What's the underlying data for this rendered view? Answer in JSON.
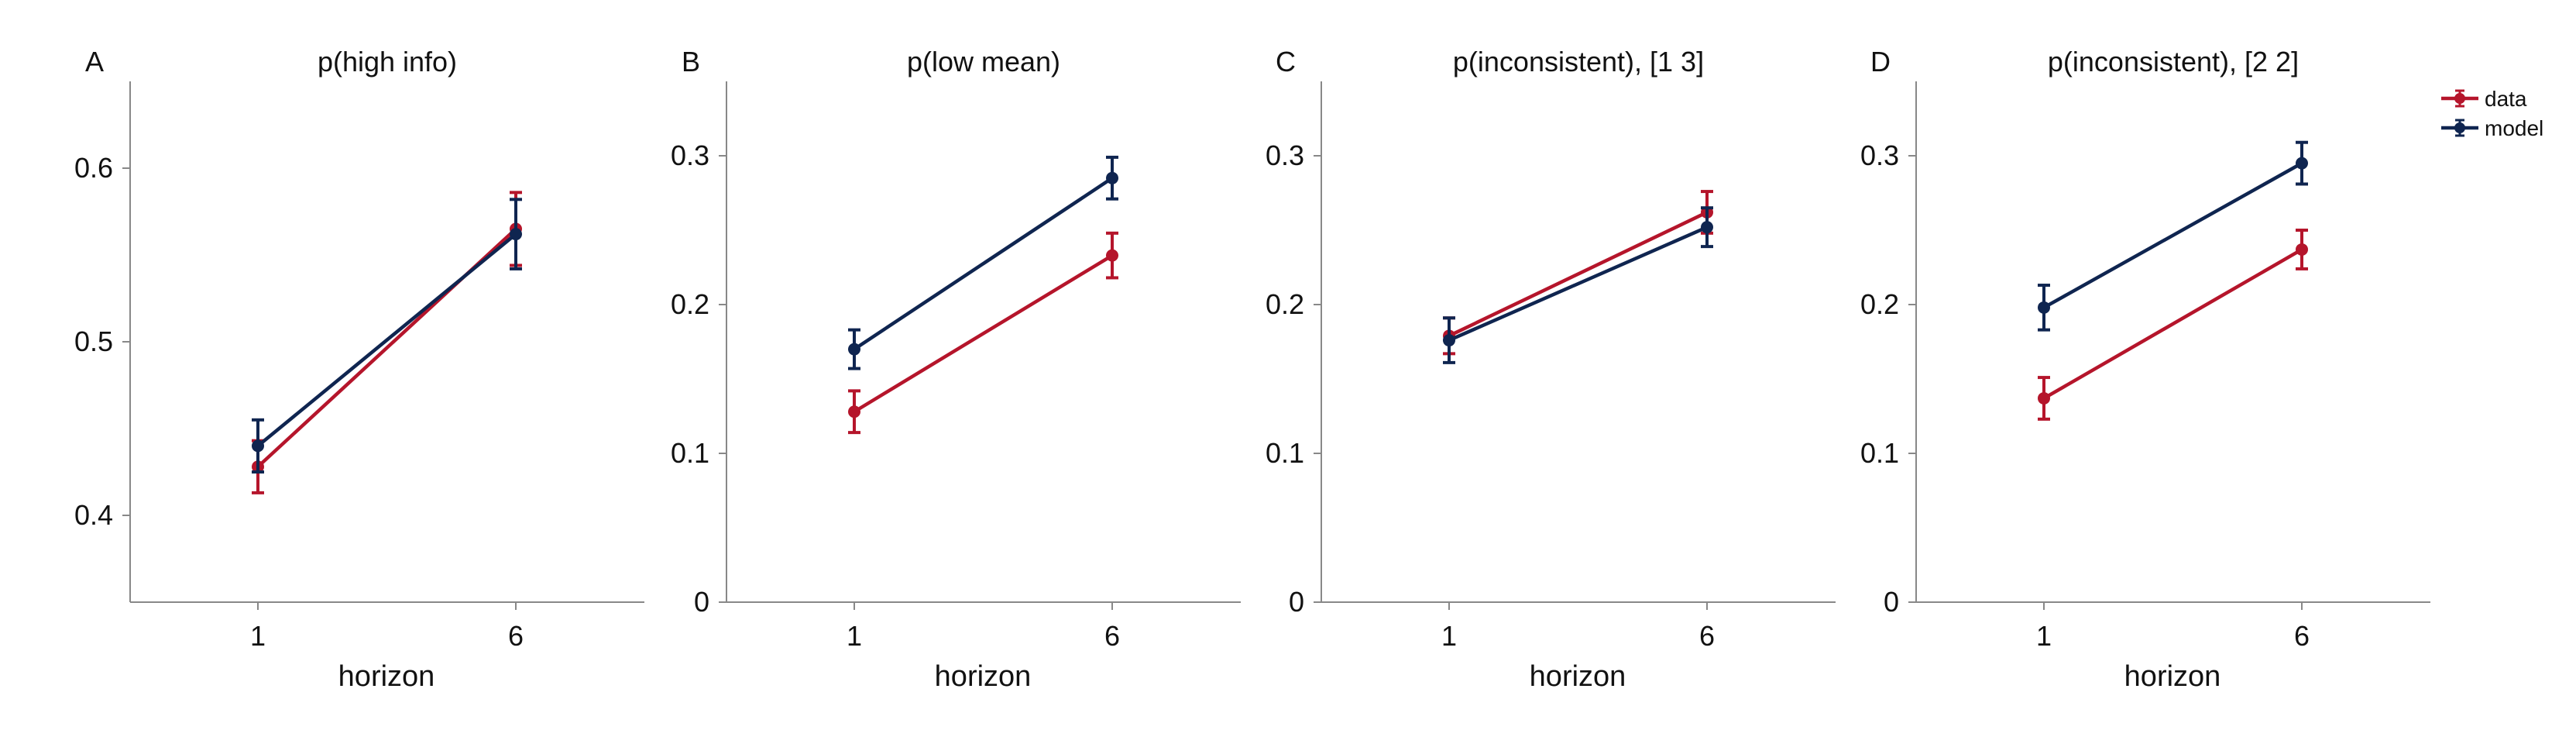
{
  "colors": {
    "data": "#b5152b",
    "model": "#0f2550",
    "axis": "#888888",
    "text": "#111111"
  },
  "legend": {
    "position": "top-right",
    "items": [
      {
        "key": "data",
        "label": "data"
      },
      {
        "key": "model",
        "label": "model"
      }
    ]
  },
  "chart_data": [
    {
      "type": "line",
      "panel": "A",
      "title": "p(high info)",
      "xlabel": "horizon",
      "ylabel": "",
      "x": [
        1,
        6
      ],
      "xticks": [
        "1",
        "6"
      ],
      "ylim": [
        0.35,
        0.65
      ],
      "yticks": [
        0.4,
        0.5,
        0.6
      ],
      "ytick_labels": [
        "0.4",
        "0.5",
        "0.6"
      ],
      "grid": false,
      "series": [
        {
          "name": "data",
          "key": "data",
          "values": [
            0.428,
            0.565
          ],
          "err": [
            0.015,
            0.021
          ]
        },
        {
          "name": "model",
          "key": "model",
          "values": [
            0.44,
            0.562
          ],
          "err": [
            0.015,
            0.02
          ]
        }
      ]
    },
    {
      "type": "line",
      "panel": "B",
      "title": "p(low mean)",
      "xlabel": "horizon",
      "ylabel": "",
      "x": [
        1,
        6
      ],
      "xticks": [
        "1",
        "6"
      ],
      "ylim": [
        0,
        0.35
      ],
      "yticks": [
        0,
        0.1,
        0.2,
        0.3
      ],
      "ytick_labels": [
        "0",
        "0.1",
        "0.2",
        "0.3"
      ],
      "grid": false,
      "series": [
        {
          "name": "data",
          "key": "data",
          "values": [
            0.128,
            0.233
          ],
          "err": [
            0.014,
            0.015
          ]
        },
        {
          "name": "model",
          "key": "model",
          "values": [
            0.17,
            0.285
          ],
          "err": [
            0.013,
            0.014
          ]
        }
      ]
    },
    {
      "type": "line",
      "panel": "C",
      "title": "p(inconsistent), [1 3]",
      "xlabel": "horizon",
      "ylabel": "",
      "x": [
        1,
        6
      ],
      "xticks": [
        "1",
        "6"
      ],
      "ylim": [
        0,
        0.35
      ],
      "yticks": [
        0,
        0.1,
        0.2,
        0.3
      ],
      "ytick_labels": [
        "0",
        "0.1",
        "0.2",
        "0.3"
      ],
      "grid": false,
      "series": [
        {
          "name": "data",
          "key": "data",
          "values": [
            0.179,
            0.262
          ],
          "err": [
            0.012,
            0.014
          ]
        },
        {
          "name": "model",
          "key": "model",
          "values": [
            0.176,
            0.252
          ],
          "err": [
            0.015,
            0.013
          ]
        }
      ]
    },
    {
      "type": "line",
      "panel": "D",
      "title": "p(inconsistent), [2 2]",
      "xlabel": "horizon",
      "ylabel": "",
      "x": [
        1,
        6
      ],
      "xticks": [
        "1",
        "6"
      ],
      "ylim": [
        0,
        0.35
      ],
      "yticks": [
        0,
        0.1,
        0.2,
        0.3
      ],
      "ytick_labels": [
        "0",
        "0.1",
        "0.2",
        "0.3"
      ],
      "grid": false,
      "series": [
        {
          "name": "data",
          "key": "data",
          "values": [
            0.137,
            0.237
          ],
          "err": [
            0.014,
            0.013
          ]
        },
        {
          "name": "model",
          "key": "model",
          "values": [
            0.198,
            0.295
          ],
          "err": [
            0.015,
            0.014
          ]
        }
      ]
    }
  ]
}
